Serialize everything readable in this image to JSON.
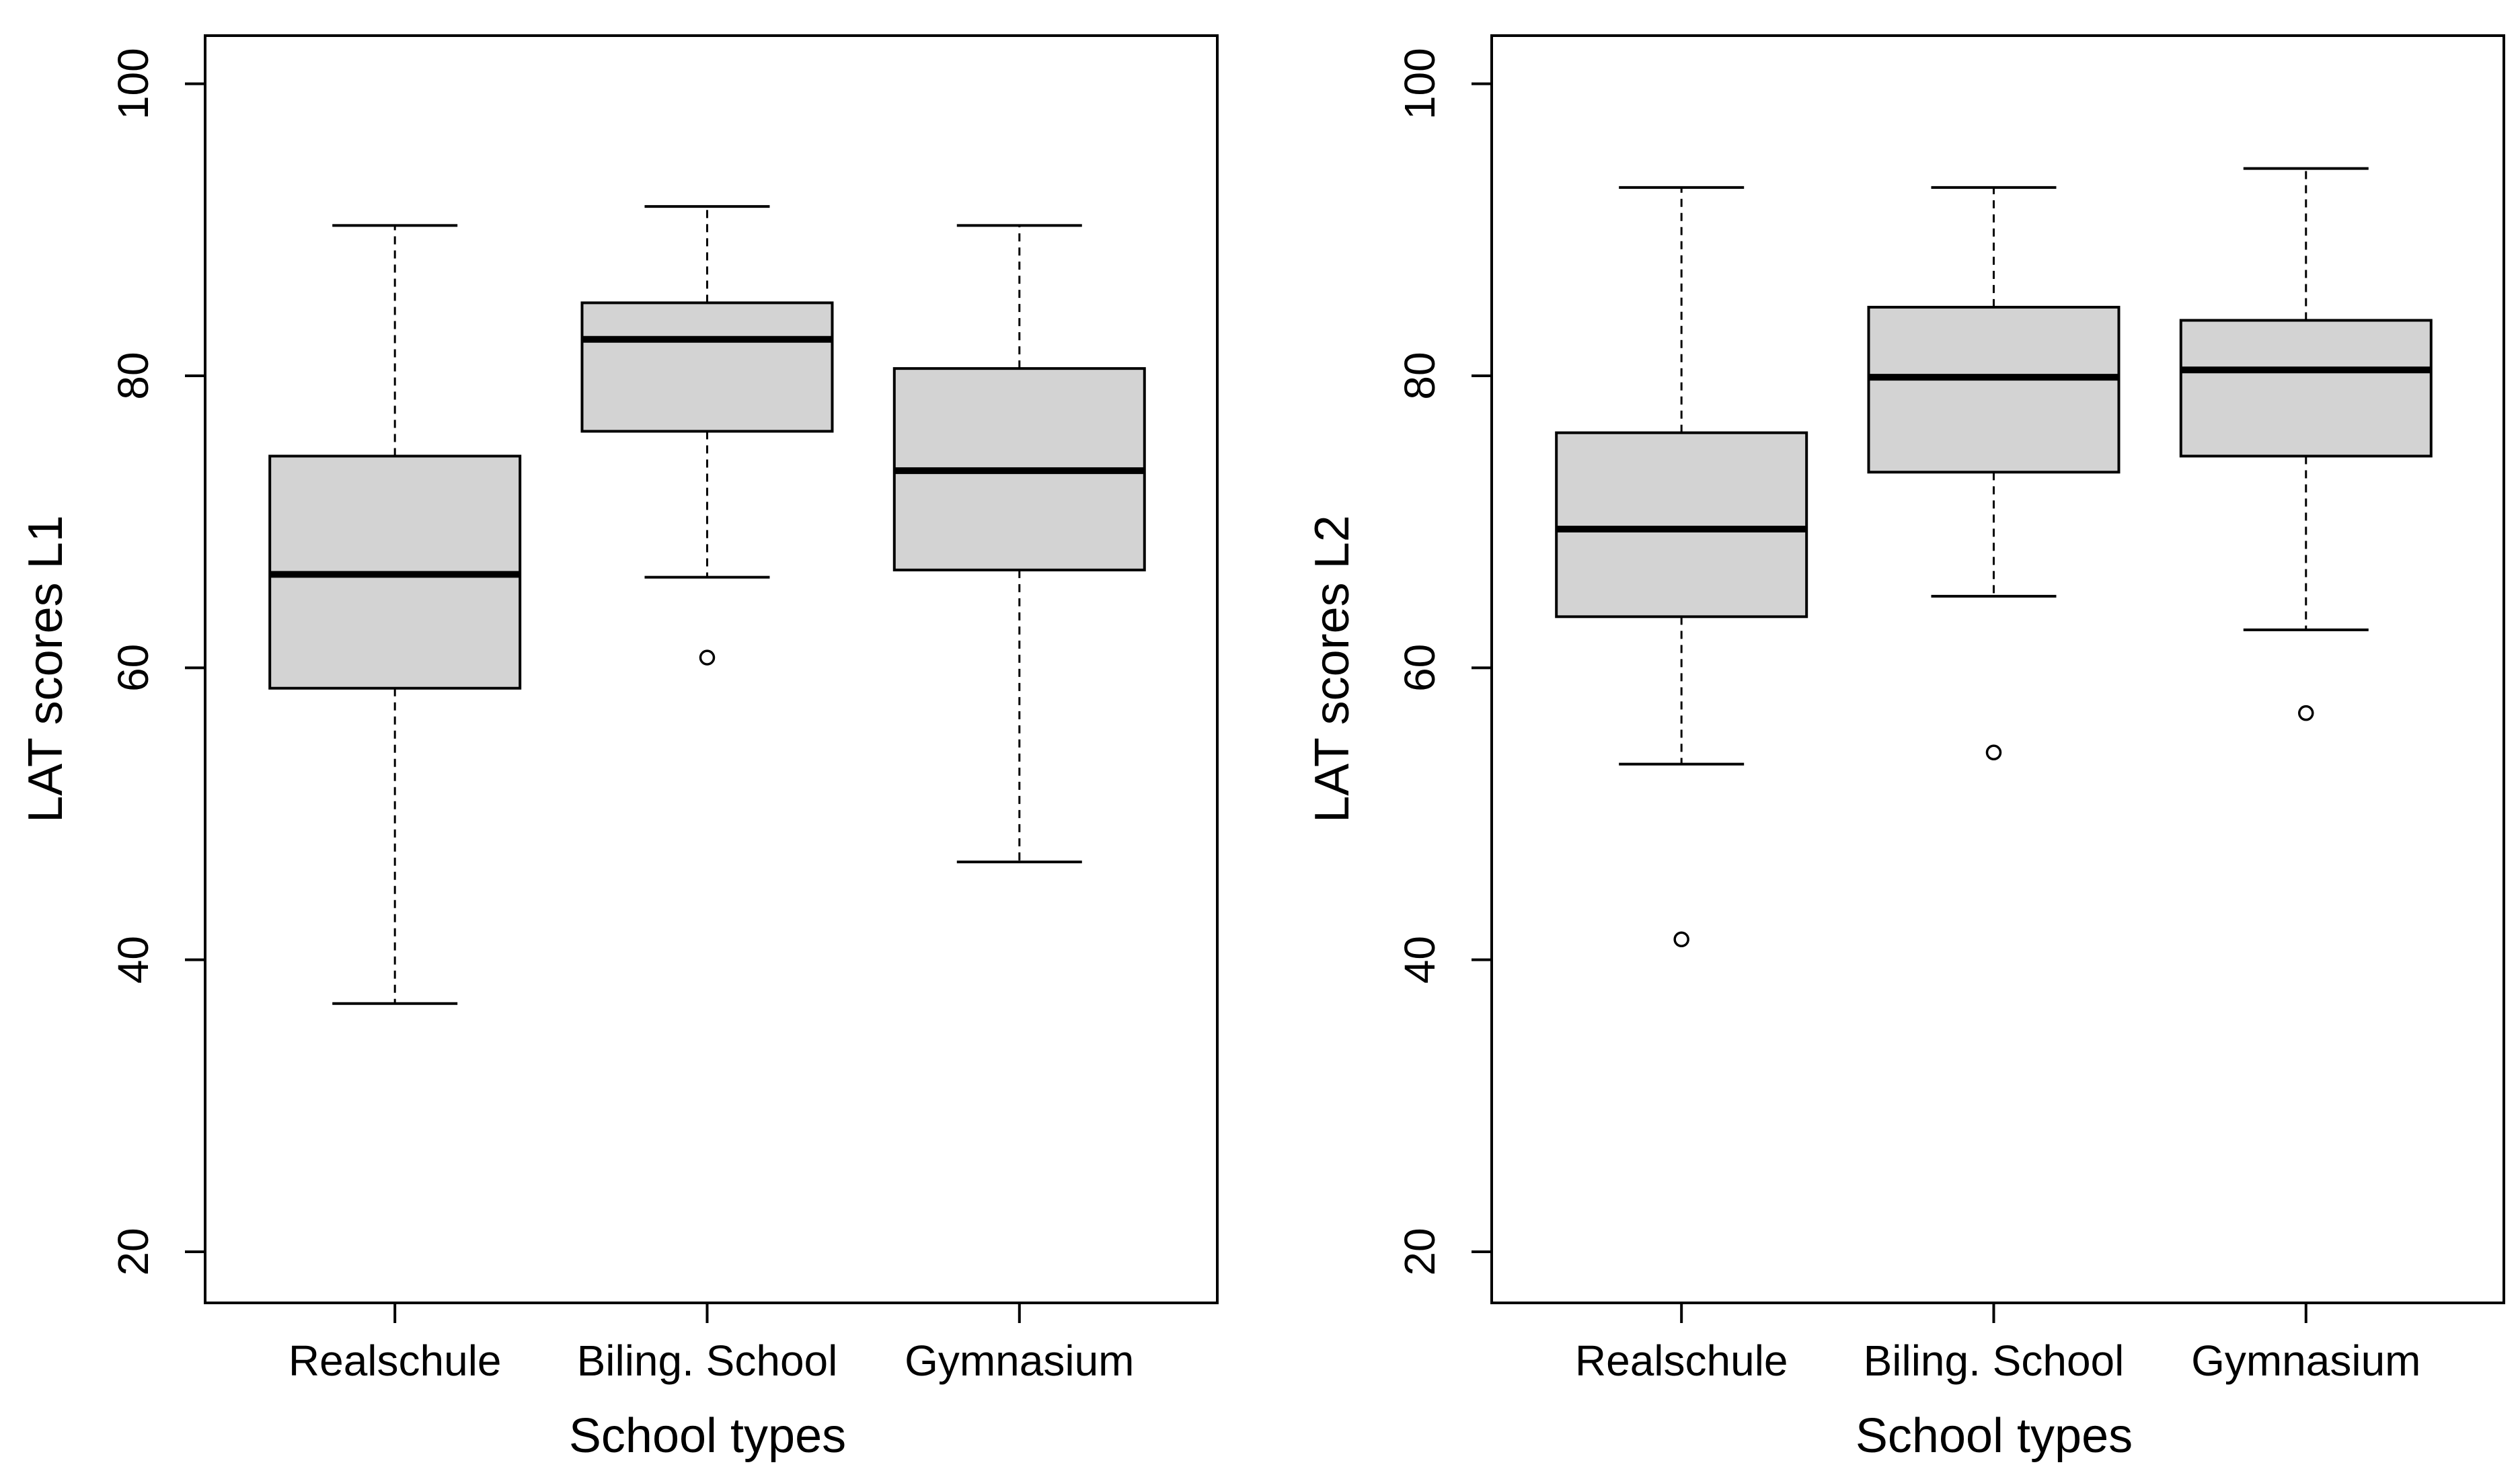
{
  "chart_data": [
    {
      "type": "boxplot",
      "xlabel": "School types",
      "ylabel": "LAT scores L1",
      "ylim": [
        16.5,
        103.3
      ],
      "yticks": [
        20,
        40,
        60,
        80,
        100
      ],
      "categories": [
        "Realschule",
        "Biling. School",
        "Gymnasium"
      ],
      "boxes": [
        {
          "category": "Realschule",
          "whisker_low": 37,
          "q1": 58.6,
          "median": 66.4,
          "q3": 74.5,
          "whisker_high": 90.3,
          "outliers": []
        },
        {
          "category": "Biling. School",
          "whisker_low": 66.2,
          "q1": 76.2,
          "median": 82.5,
          "q3": 85,
          "whisker_high": 91.6,
          "outliers": [
            60.7
          ]
        },
        {
          "category": "Gymnasium",
          "whisker_low": 46.7,
          "q1": 66.7,
          "median": 73.5,
          "q3": 80.5,
          "whisker_high": 90.3,
          "outliers": []
        }
      ]
    },
    {
      "type": "boxplot",
      "xlabel": "School types",
      "ylabel": "LAT scores L2",
      "ylim": [
        16.5,
        103.3
      ],
      "yticks": [
        20,
        40,
        60,
        80,
        100
      ],
      "categories": [
        "Realschule",
        "Biling. School",
        "Gymnasium"
      ],
      "boxes": [
        {
          "category": "Realschule",
          "whisker_low": 53.4,
          "q1": 63.5,
          "median": 69.5,
          "q3": 76.1,
          "whisker_high": 92.9,
          "outliers": [
            41.4
          ]
        },
        {
          "category": "Biling. School",
          "whisker_low": 64.9,
          "q1": 73.4,
          "median": 79.9,
          "q3": 84.7,
          "whisker_high": 92.9,
          "outliers": [
            54.2
          ]
        },
        {
          "category": "Gymnasium",
          "whisker_low": 62.6,
          "q1": 74.5,
          "median": 80.4,
          "q3": 83.8,
          "whisker_high": 94.2,
          "outliers": [
            56.9
          ]
        }
      ]
    }
  ]
}
